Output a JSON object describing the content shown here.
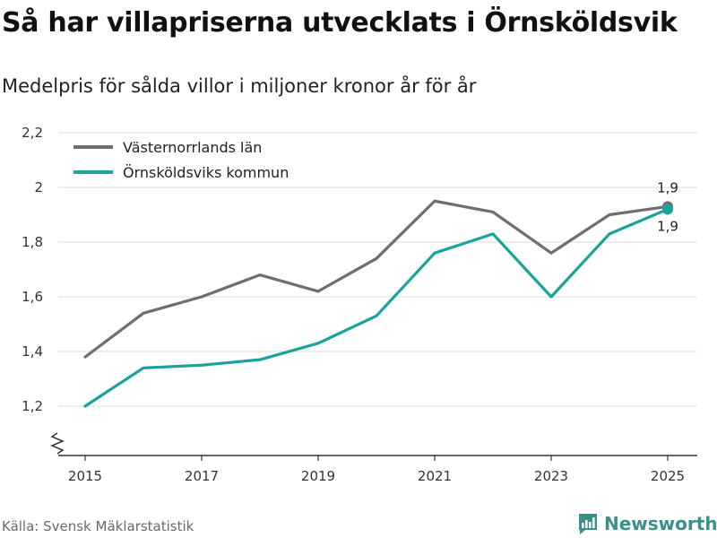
{
  "title": "Så har villapriserna utvecklats i Örnsköldsvik",
  "subtitle": "Medelpris för sålda villor i miljoner kronor år för år",
  "source": "Källa: Svensk Mäklarstatistik",
  "brand": {
    "name": "Newsworthy",
    "color": "#3a8f8a",
    "icon": "bar-chart-logo-icon"
  },
  "chart_data": {
    "type": "line",
    "title": "Så har villapriserna utvecklats i Örnsköldsvik",
    "subtitle": "Medelpris för sålda villor i miljoner kronor år för år",
    "xlabel": "",
    "ylabel": "",
    "x": [
      2015,
      2016,
      2017,
      2018,
      2019,
      2020,
      2021,
      2022,
      2023,
      2024,
      2025
    ],
    "xticks": [
      "2015",
      "2017",
      "2019",
      "2021",
      "2023",
      "2025"
    ],
    "xlim": [
      2015,
      2025
    ],
    "ylim": [
      1.2,
      2.2
    ],
    "yticks": [
      1.2,
      1.4,
      1.6,
      1.8,
      2.0,
      2.2
    ],
    "ytick_labels": [
      "1,2",
      "1,4",
      "1,6",
      "1,8",
      "2",
      "2,2"
    ],
    "grid": true,
    "broken_axis": true,
    "legend_position": "top-left",
    "series": [
      {
        "name": "Västernorrlands län",
        "color": "#6e6d73",
        "values": [
          1.38,
          1.54,
          1.6,
          1.68,
          1.62,
          1.74,
          1.95,
          1.91,
          1.76,
          1.9,
          1.93
        ],
        "end_label": "1,9"
      },
      {
        "name": "Örnsköldsviks kommun",
        "color": "#1aa39a",
        "values": [
          1.2,
          1.34,
          1.35,
          1.37,
          1.43,
          1.53,
          1.76,
          1.83,
          1.6,
          1.83,
          1.92
        ],
        "end_label": "1,9"
      }
    ]
  }
}
